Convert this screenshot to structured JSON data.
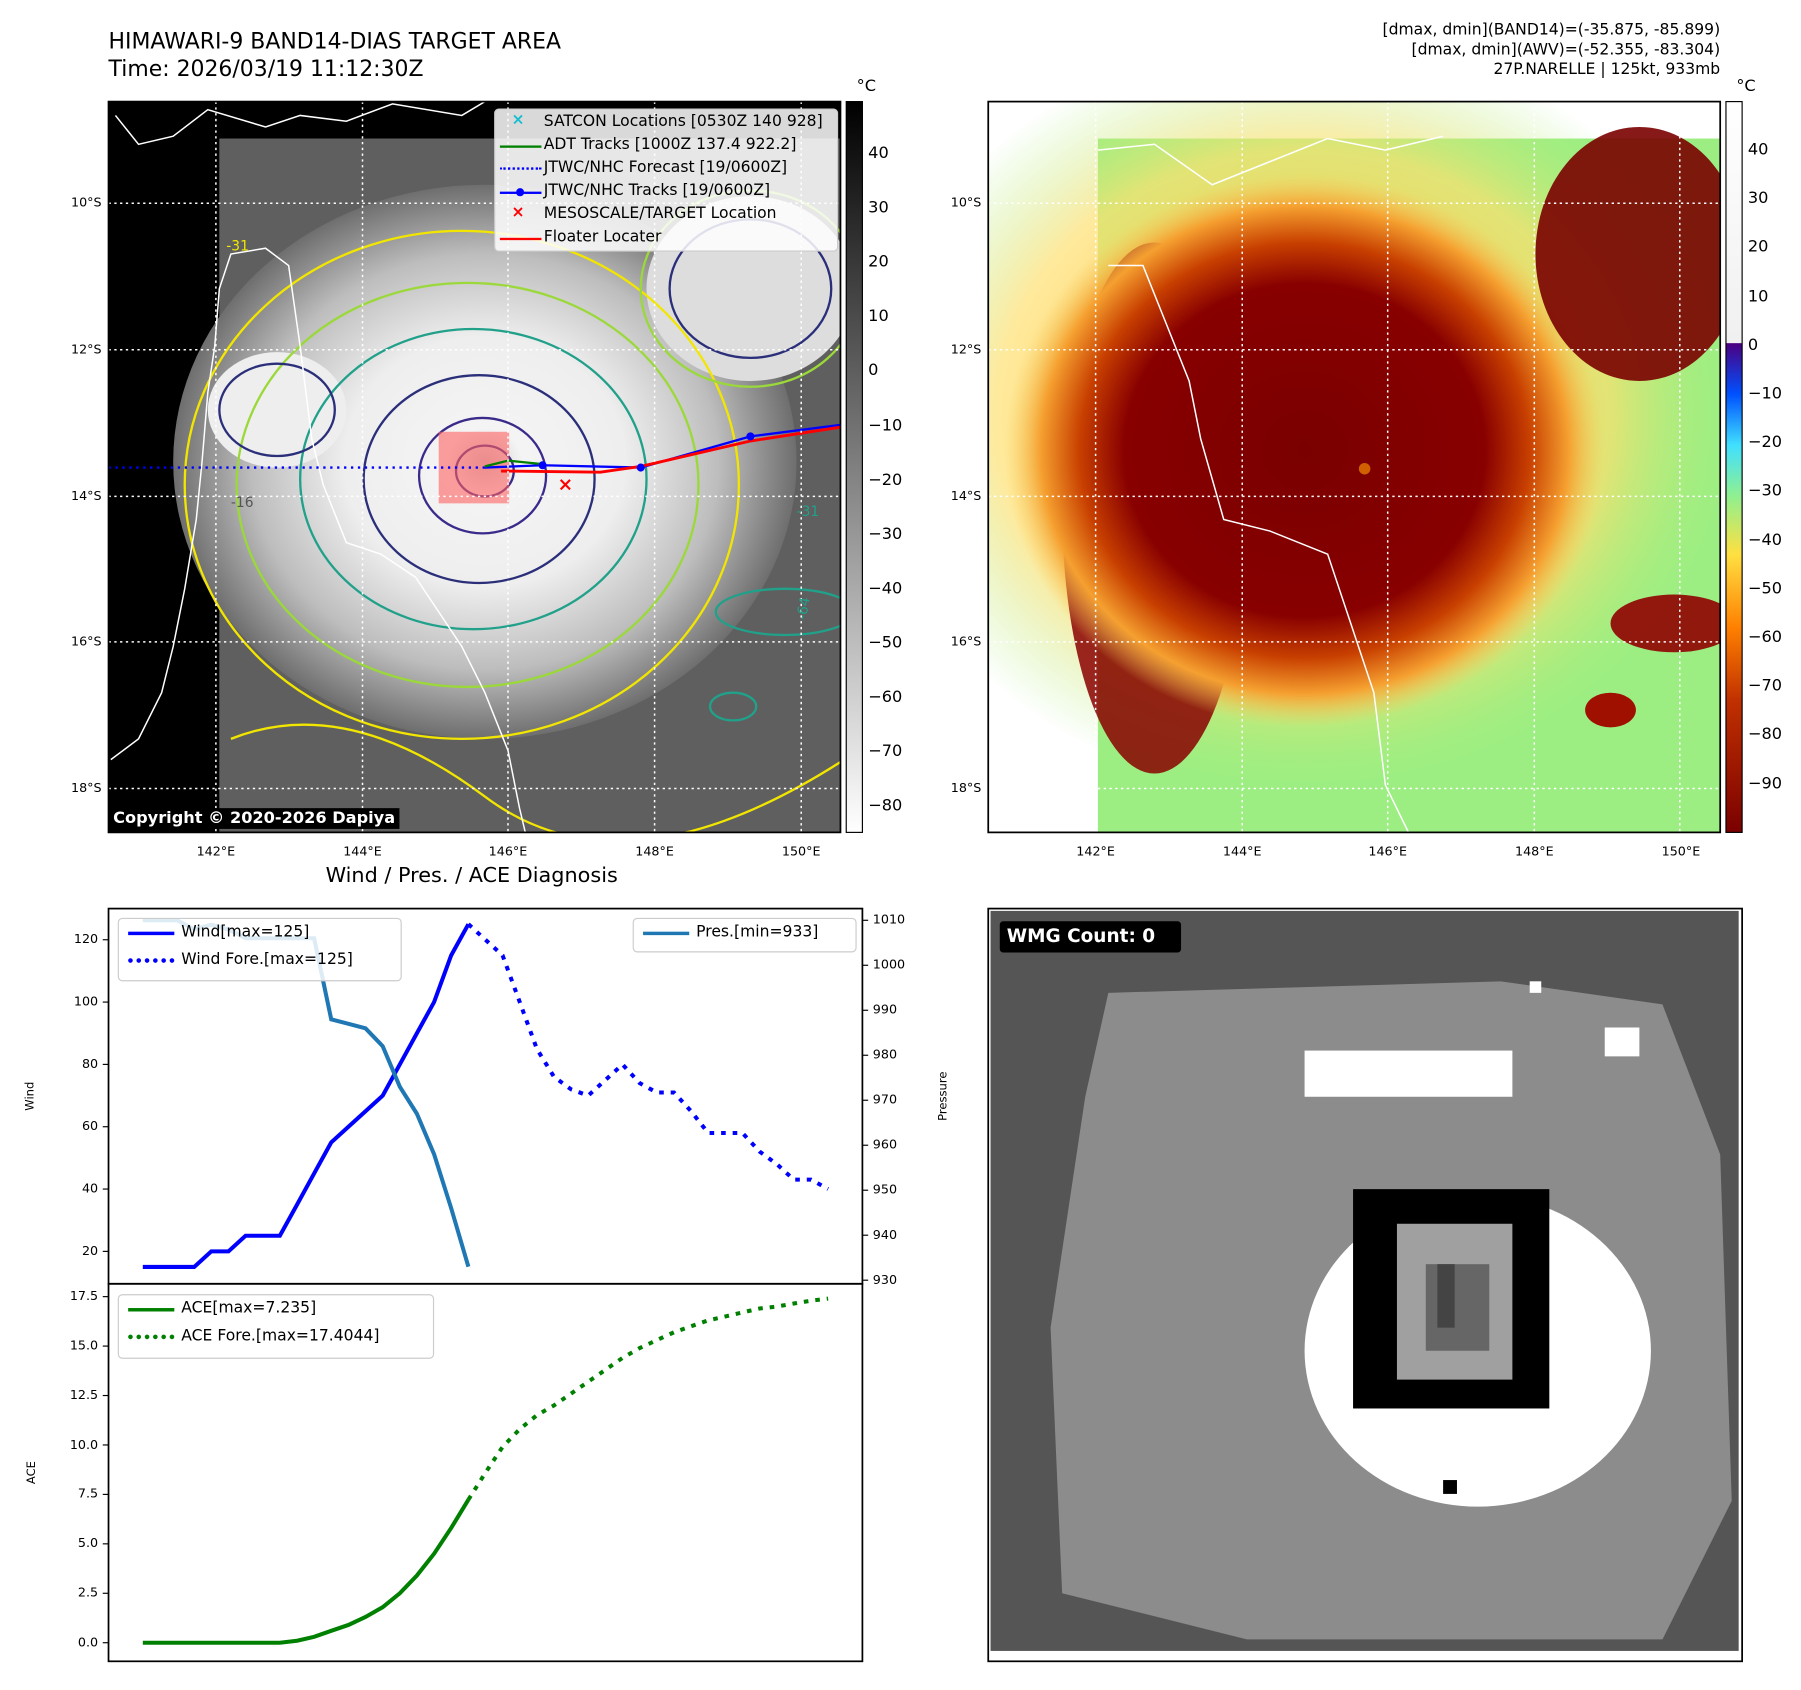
{
  "header": {
    "title": "HIMAWARI-9 BAND14-DIAS TARGET AREA",
    "time": "Time: 2026/03/19 11:12:30Z",
    "stats": [
      "[dmax, dmin](BAND14)=(-35.875, -85.899)",
      "[dmax, dmin](AWV)=(-52.355, -83.304)",
      "27P.NARELLE | 125kt, 933mb"
    ]
  },
  "maps": {
    "lat_labels": [
      "10°S",
      "12°S",
      "14°S",
      "16°S",
      "18°S"
    ],
    "lon_labels": [
      "142°E",
      "144°E",
      "146°E",
      "148°E",
      "150°E"
    ],
    "unit": "°C",
    "colorbar1_ticks": [
      "40",
      "30",
      "20",
      "10",
      "0",
      "−10",
      "−20",
      "−30",
      "−40",
      "−50",
      "−60",
      "−70",
      "−80"
    ],
    "colorbar2_ticks": [
      "40",
      "30",
      "20",
      "10",
      "0",
      "−10",
      "−20",
      "−30",
      "−40",
      "−50",
      "−60",
      "−70",
      "−80",
      "−90"
    ],
    "copyright": "Copyright © 2020-2026 Dapiya",
    "contour_labels": [
      "-31",
      "-16",
      "-64",
      "-31"
    ],
    "legend": [
      {
        "label": "SATCON Locations [0530Z 140 928]",
        "color": "#17becf",
        "icon": "x-marker"
      },
      {
        "label": "ADT Tracks [1000Z 137.4 922.2]",
        "color": "#008000",
        "icon": "solid-line"
      },
      {
        "label": "JTWC/NHC Forecast [19/0600Z]",
        "color": "#0000ff",
        "icon": "dotted-line"
      },
      {
        "label": "JTWC/NHC Tracks [19/0600Z]",
        "color": "#0000ff",
        "icon": "line-dot"
      },
      {
        "label": "MESOSCALE/TARGET Location",
        "color": "#ff0000",
        "icon": "x-marker"
      },
      {
        "label": "Floater Locater",
        "color": "#ff0000",
        "icon": "solid-line"
      }
    ]
  },
  "wmg": {
    "label": "WMG Count: 0"
  },
  "chart_data": [
    {
      "type": "line",
      "title": "Wind / Pres. / ACE Diagnosis",
      "ylabel": "Wind",
      "y2label": "Pressure",
      "xlim": [
        -2,
        42
      ],
      "ylim": [
        9.6,
        130
      ],
      "y2lim": [
        929.2,
        1012.6
      ],
      "yticks": [
        20,
        40,
        60,
        80,
        100,
        120
      ],
      "y2ticks": [
        930,
        940,
        950,
        960,
        970,
        980,
        990,
        1000,
        1010
      ],
      "series": [
        {
          "name": "Wind[max=125]",
          "color": "#0000ff",
          "style": "solid",
          "axis": "left",
          "x_start": 0,
          "values": [
            15,
            15,
            15,
            15,
            20,
            20,
            25,
            25,
            25,
            35,
            45,
            55,
            60,
            65,
            70,
            80,
            90,
            100,
            115,
            125
          ]
        },
        {
          "name": "Wind Fore.[max=125]",
          "color": "#0000ff",
          "style": "dotted",
          "axis": "left",
          "x_start": 19,
          "values": [
            125,
            120,
            115,
            100,
            85,
            76,
            72,
            70,
            75,
            80,
            74,
            71,
            71,
            65,
            58,
            58,
            58,
            52,
            48,
            43,
            43,
            40
          ]
        },
        {
          "name": "Pres.[min=933]",
          "color": "#1f77b4",
          "style": "solid",
          "axis": "right",
          "x_start": 0,
          "values": [
            1010,
            1010,
            1010,
            1008,
            1009,
            1008,
            1006,
            1006,
            1006,
            1006,
            1006,
            988,
            987,
            986,
            982,
            973,
            967,
            958,
            946,
            933
          ]
        }
      ]
    },
    {
      "type": "line",
      "ylabel": "ACE",
      "xlim": [
        -2,
        42
      ],
      "ylim": [
        -0.94,
        18.15
      ],
      "yticks": [
        0.0,
        2.5,
        5.0,
        7.5,
        10.0,
        12.5,
        15.0,
        17.5
      ],
      "series": [
        {
          "name": "ACE[max=7.235]",
          "color": "#008000",
          "style": "solid",
          "x_start": 0,
          "values": [
            0,
            0,
            0,
            0,
            0,
            0,
            0,
            0,
            0,
            0.1,
            0.3,
            0.6,
            0.9,
            1.3,
            1.8,
            2.5,
            3.4,
            4.5,
            5.8,
            7.235
          ]
        },
        {
          "name": "ACE Fore.[max=17.4044]",
          "color": "#008000",
          "style": "dotted",
          "x_start": 19,
          "values": [
            7.235,
            8.6,
            9.9,
            10.8,
            11.5,
            12.0,
            12.6,
            13.2,
            13.8,
            14.4,
            14.9,
            15.3,
            15.7,
            16.0,
            16.3,
            16.5,
            16.7,
            16.9,
            17.0,
            17.15,
            17.3,
            17.4044
          ]
        }
      ]
    }
  ]
}
